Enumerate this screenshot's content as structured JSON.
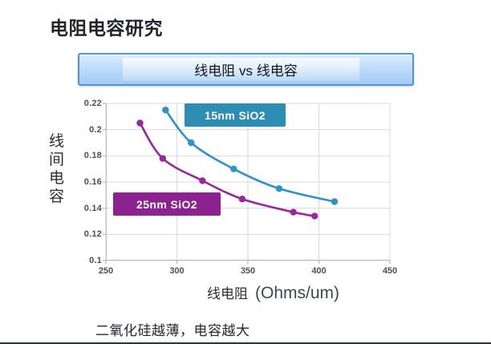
{
  "page": {
    "title": "电阻电容研究",
    "banner_label": "线电阻 vs 线电容",
    "note": "二氧化硅越薄，电容越大"
  },
  "colors": {
    "banner_border": "#5593d6",
    "banner_fill_top": "#dcecfc",
    "banner_fill_bottom": "#a4cbf2",
    "grid": "#d9d9d9",
    "axis": "#c0c0c0",
    "tick": "#b5b5b5",
    "bottom_rule": "#2a2e3a"
  },
  "chart_data": {
    "type": "scatter",
    "title": "线电阻 vs 线电容",
    "xlabel": "线电阻",
    "xlabel_unit": "(Ohms/um)",
    "ylabel": "线间电容",
    "xlim": [
      250,
      450
    ],
    "ylim": [
      0.1,
      0.22
    ],
    "x_ticks": [
      250,
      300,
      350,
      400,
      450
    ],
    "x_tick_labels": [
      "250",
      "300",
      "350",
      "400",
      "450"
    ],
    "y_ticks": [
      0.22,
      0.2,
      0.18,
      0.16,
      0.14,
      0.12,
      0.1
    ],
    "y_tick_labels": [
      "0.22",
      "0.2",
      "0.18",
      "0.16",
      "0.14",
      "0.12",
      "0.1"
    ],
    "grid": true,
    "legend_position": "inside-plot",
    "series": [
      {
        "name": "15nm SiO2",
        "line_color": "#2e93c6",
        "legend_bg": "#2e8db3",
        "points": [
          [
            292,
            0.215
          ],
          [
            310,
            0.19
          ],
          [
            340,
            0.17
          ],
          [
            372,
            0.155
          ],
          [
            411,
            0.145
          ]
        ]
      },
      {
        "name": "25nm SiO2",
        "line_color": "#98289b",
        "legend_bg": "#8c2190",
        "points": [
          [
            274,
            0.205
          ],
          [
            290,
            0.178
          ],
          [
            318,
            0.161
          ],
          [
            346,
            0.147
          ],
          [
            382,
            0.137
          ],
          [
            397,
            0.134
          ]
        ]
      }
    ]
  }
}
